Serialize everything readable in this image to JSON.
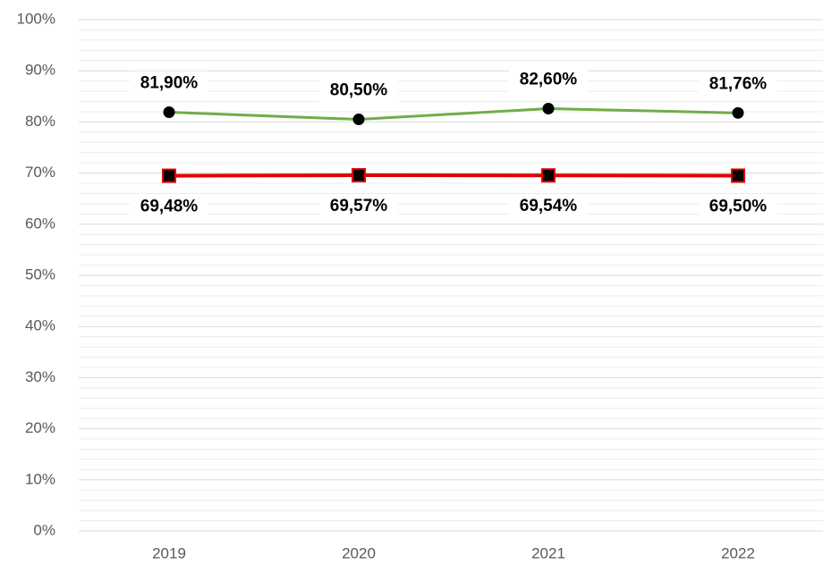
{
  "chart_data": {
    "type": "line",
    "categories": [
      "2019",
      "2020",
      "2021",
      "2022"
    ],
    "series": [
      {
        "color": "#70ad47",
        "marker": "circle",
        "marker_color": "#000000",
        "label_position": "above",
        "values": [
          81.9,
          80.5,
          82.6,
          81.76
        ],
        "value_labels": [
          "81,90%",
          "80,50%",
          "82,60%",
          "81,76%"
        ]
      },
      {
        "color": "#e00000",
        "marker": "square",
        "marker_color": "#000000",
        "label_position": "below",
        "values": [
          69.48,
          69.57,
          69.54,
          69.5
        ],
        "value_labels": [
          "69,48%",
          "69,57%",
          "69,54%",
          "69,50%"
        ]
      }
    ],
    "ylim": [
      0,
      100
    ],
    "yticks": [
      {
        "value": 0,
        "label": "0%"
      },
      {
        "value": 10,
        "label": "10%"
      },
      {
        "value": 20,
        "label": "20%"
      },
      {
        "value": 30,
        "label": "30%"
      },
      {
        "value": 40,
        "label": "40%"
      },
      {
        "value": 50,
        "label": "50%"
      },
      {
        "value": 60,
        "label": "60%"
      },
      {
        "value": 70,
        "label": "70%"
      },
      {
        "value": 80,
        "label": "80%"
      },
      {
        "value": 90,
        "label": "90%"
      },
      {
        "value": 100,
        "label": "100%"
      }
    ],
    "minor_yticks": [
      2,
      4,
      6,
      8,
      12,
      14,
      16,
      18,
      22,
      24,
      26,
      28,
      32,
      34,
      36,
      38,
      42,
      44,
      46,
      48,
      52,
      54,
      56,
      58,
      62,
      64,
      66,
      68,
      72,
      74,
      76,
      78,
      82,
      84,
      86,
      88,
      92,
      94,
      96,
      98
    ],
    "grid": true,
    "minor_grid": true
  }
}
